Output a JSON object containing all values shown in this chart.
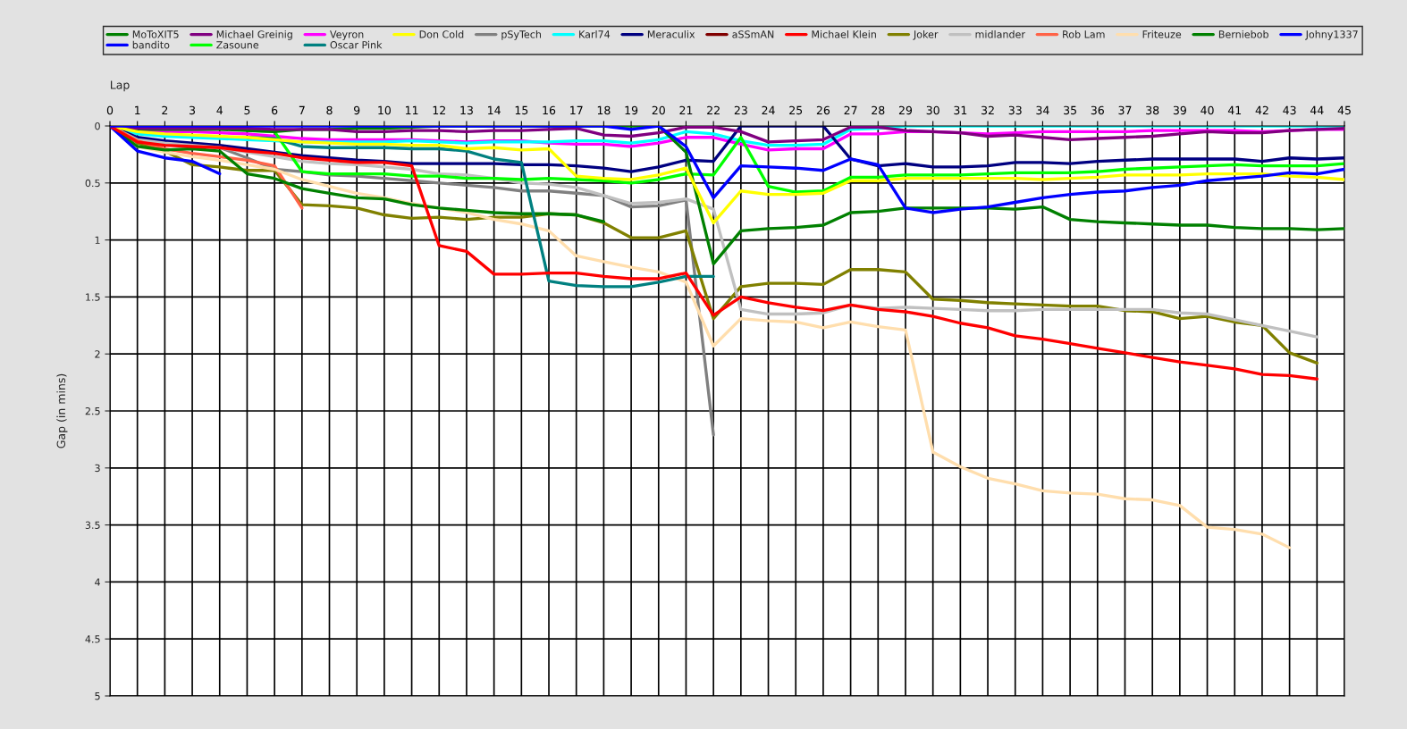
{
  "chart_data": {
    "type": "line",
    "xlabel": "Lap",
    "ylabel": "Gap (in mins)",
    "x": [
      0,
      1,
      2,
      3,
      4,
      5,
      6,
      7,
      8,
      9,
      10,
      11,
      12,
      13,
      14,
      15,
      16,
      17,
      18,
      19,
      20,
      21,
      22,
      23,
      24,
      25,
      26,
      27,
      28,
      29,
      30,
      31,
      32,
      33,
      34,
      35,
      36,
      37,
      38,
      39,
      40,
      41,
      42,
      43,
      44,
      45
    ],
    "xlim": [
      0,
      45
    ],
    "xticks": [
      0,
      1,
      2,
      3,
      4,
      5,
      6,
      7,
      8,
      9,
      10,
      11,
      12,
      13,
      14,
      15,
      16,
      17,
      18,
      19,
      20,
      21,
      22,
      23,
      24,
      25,
      26,
      27,
      28,
      29,
      30,
      31,
      32,
      33,
      34,
      35,
      36,
      37,
      38,
      39,
      40,
      41,
      42,
      43,
      44,
      45
    ],
    "ylim": [
      5,
      0
    ],
    "yticks": [
      0,
      0.5,
      1,
      1.5,
      2,
      2.5,
      3,
      3.5,
      4,
      4.5,
      5
    ],
    "grid": true,
    "legend": "top",
    "marker": "none",
    "line_style": "solid",
    "series": [
      {
        "name": "MoToXIT5",
        "color": "#008000",
        "values": [
          0,
          0.03,
          0.03,
          0.03,
          0.03,
          0.04,
          0.05,
          0.03,
          0.03,
          0.02,
          0.02,
          0.01,
          0,
          0,
          0,
          0,
          0,
          0,
          0,
          0,
          0,
          0.23,
          1.21,
          0.92,
          0.9,
          0.89,
          0.87,
          0.76,
          0.75,
          0.72,
          0.72,
          0.72,
          0.72,
          0.73,
          0.71,
          0.82,
          0.84,
          0.85,
          0.86,
          0.87,
          0.87,
          0.89,
          0.9,
          0.9,
          0.91,
          0.9
        ]
      },
      {
        "name": "Michael Greinig",
        "color": "#800080",
        "values": [
          0,
          0.02,
          0.02,
          0.02,
          0.02,
          0.02,
          0.03,
          0.03,
          0.03,
          0.05,
          0.05,
          0.04,
          0.04,
          0.05,
          0.04,
          0.04,
          0.03,
          0.02,
          0.08,
          0.09,
          0.06,
          0.01,
          0.01,
          0.05,
          0.14,
          0.13,
          0.12,
          0.01,
          0.01,
          0.04,
          0.05,
          0.06,
          0.09,
          0.08,
          0.1,
          0.12,
          0.11,
          0.1,
          0.09,
          0.07,
          0.05,
          0.06,
          0.06,
          0.04,
          0.03,
          0.02
        ]
      },
      {
        "name": "Veyron",
        "color": "#ff00ff",
        "values": [
          0,
          0.04,
          0.05,
          0.05,
          0.06,
          0.07,
          0.09,
          0.11,
          0.12,
          0.12,
          0.12,
          0.12,
          0.13,
          0.14,
          0.13,
          0.13,
          0.15,
          0.16,
          0.16,
          0.18,
          0.15,
          0.1,
          0.1,
          0.16,
          0.21,
          0.2,
          0.2,
          0.07,
          0.07,
          0.05,
          0.05,
          0.06,
          0.07,
          0.06,
          0.05,
          0.05,
          0.05,
          0.05,
          0.04,
          0.04,
          0.04,
          0.04,
          0.05,
          0.04,
          0.03,
          0.03
        ]
      },
      {
        "name": "Don Cold",
        "color": "#ffff00",
        "values": [
          0,
          0.05,
          0.07,
          0.08,
          0.09,
          0.1,
          0.12,
          0.14,
          0.15,
          0.16,
          0.16,
          0.17,
          0.17,
          0.2,
          0.19,
          0.21,
          0.2,
          0.44,
          0.46,
          0.47,
          0.43,
          0.37,
          0.85,
          0.57,
          0.6,
          0.6,
          0.59,
          0.48,
          0.48,
          0.46,
          0.46,
          0.46,
          0.46,
          0.46,
          0.47,
          0.46,
          0.45,
          0.43,
          0.43,
          0.43,
          0.42,
          0.42,
          0.42,
          0.44,
          0.45,
          0.47
        ]
      },
      {
        "name": "pSyTech",
        "color": "#808080",
        "values": [
          0,
          0.13,
          0.16,
          0.17,
          0.19,
          0.28,
          0.38,
          0.4,
          0.43,
          0.44,
          0.46,
          0.48,
          0.5,
          0.52,
          0.54,
          0.57,
          0.57,
          0.59,
          0.61,
          0.71,
          0.7,
          0.65,
          2.71,
          null,
          null,
          null,
          null,
          null,
          null,
          null,
          null,
          null,
          null,
          null,
          null,
          null,
          null,
          null,
          null,
          null,
          null,
          null,
          null,
          null,
          null,
          null
        ]
      },
      {
        "name": "Karl74",
        "color": "#00ffff",
        "values": [
          0,
          0.07,
          0.09,
          0.1,
          0.11,
          0.12,
          0.13,
          0.14,
          0.14,
          0.14,
          0.14,
          0.13,
          0.14,
          0.15,
          0.14,
          0.14,
          0.14,
          0.13,
          0.13,
          0.15,
          0.12,
          0.05,
          0.07,
          0.13,
          0.17,
          0.17,
          0.16,
          0.03,
          0.02,
          0,
          0,
          0,
          0,
          0,
          0,
          0,
          0,
          0,
          0,
          0,
          0,
          0,
          0,
          0,
          0,
          0
        ]
      },
      {
        "name": "Meraculix",
        "color": "#000080",
        "values": [
          0,
          0.1,
          0.13,
          0.15,
          0.17,
          0.2,
          0.23,
          0.26,
          0.28,
          0.3,
          0.31,
          0.33,
          0.33,
          0.33,
          0.33,
          0.34,
          0.34,
          0.35,
          0.37,
          0.4,
          0.36,
          0.3,
          0.31,
          0,
          0,
          0,
          0,
          0.29,
          0.35,
          0.33,
          0.36,
          0.36,
          0.35,
          0.32,
          0.32,
          0.33,
          0.31,
          0.3,
          0.29,
          0.29,
          0.29,
          0.29,
          0.31,
          0.28,
          0.29,
          0.28
        ]
      },
      {
        "name": "aSSmAN",
        "color": "#800000",
        "values": [
          null,
          null,
          null,
          null,
          null,
          null,
          null,
          null,
          null,
          null,
          null,
          null,
          null,
          null,
          null,
          null,
          null,
          null,
          null,
          null,
          null,
          null,
          null,
          null,
          null,
          null,
          null,
          null,
          null,
          null,
          null,
          null,
          null,
          null,
          null,
          null,
          null,
          null,
          null,
          null,
          null,
          null,
          null,
          null,
          null,
          null
        ]
      },
      {
        "name": "Michael Klein",
        "color": "#ff0000",
        "values": [
          0,
          0.14,
          0.17,
          0.18,
          0.19,
          0.22,
          0.24,
          0.28,
          0.3,
          0.32,
          0.32,
          0.35,
          1.05,
          1.1,
          1.3,
          1.3,
          1.29,
          1.29,
          1.32,
          1.34,
          1.34,
          1.29,
          1.66,
          1.5,
          1.55,
          1.59,
          1.62,
          1.57,
          1.61,
          1.63,
          1.67,
          1.73,
          1.77,
          1.84,
          1.87,
          1.91,
          1.95,
          1.99,
          2.03,
          2.07,
          2.1,
          2.13,
          2.18,
          2.19,
          2.22,
          null
        ]
      },
      {
        "name": "Joker",
        "color": "#808000",
        "values": [
          0,
          0.15,
          0.22,
          0.34,
          0.36,
          0.39,
          0.39,
          0.69,
          0.7,
          0.72,
          0.78,
          0.81,
          0.8,
          0.82,
          0.8,
          0.8,
          0.77,
          0.78,
          0.85,
          0.98,
          0.98,
          0.92,
          1.69,
          1.41,
          1.38,
          1.38,
          1.39,
          1.26,
          1.26,
          1.28,
          1.52,
          1.53,
          1.55,
          1.56,
          1.57,
          1.58,
          1.58,
          1.62,
          1.63,
          1.69,
          1.67,
          1.72,
          1.75,
          1.99,
          2.08,
          null
        ]
      },
      {
        "name": "midlander",
        "color": "#c0c0c0",
        "values": [
          0,
          0.12,
          0.15,
          0.17,
          0.19,
          0.23,
          0.27,
          0.31,
          0.33,
          0.34,
          0.36,
          0.38,
          0.42,
          0.43,
          0.46,
          0.5,
          0.51,
          0.54,
          0.61,
          0.68,
          0.67,
          0.64,
          0.73,
          1.61,
          1.65,
          1.65,
          1.64,
          1.57,
          1.6,
          1.59,
          1.6,
          1.61,
          1.62,
          1.62,
          1.61,
          1.61,
          1.61,
          1.61,
          1.61,
          1.64,
          1.65,
          1.7,
          1.75,
          1.8,
          1.85,
          null
        ]
      },
      {
        "name": "Rob Lam",
        "color": "#ff6347",
        "values": [
          0,
          0.13,
          0.2,
          0.24,
          0.27,
          0.3,
          0.35,
          0.72,
          null,
          null,
          null,
          null,
          null,
          null,
          null,
          null,
          null,
          null,
          null,
          null,
          null,
          null,
          null,
          null,
          null,
          null,
          null,
          null,
          null,
          null,
          null,
          null,
          null,
          null,
          null,
          null,
          null,
          null,
          null,
          null,
          null,
          null,
          null,
          null,
          null,
          null
        ]
      },
      {
        "name": "Friteuze",
        "color": "#ffdead",
        "values": [
          0,
          0.18,
          0.23,
          0.27,
          0.3,
          0.34,
          0.38,
          0.47,
          0.53,
          0.59,
          0.63,
          0.68,
          0.72,
          0.76,
          0.82,
          0.86,
          0.92,
          1.14,
          1.19,
          1.24,
          1.28,
          1.37,
          1.93,
          1.69,
          1.71,
          1.72,
          1.77,
          1.72,
          1.76,
          1.79,
          2.86,
          2.99,
          3.09,
          3.14,
          3.2,
          3.22,
          3.23,
          3.27,
          3.28,
          3.33,
          3.52,
          3.54,
          3.58,
          3.7,
          null,
          null
        ]
      },
      {
        "name": "Berniebob",
        "color": "#008000",
        "values": [
          0,
          0.18,
          0.21,
          0.2,
          0.22,
          0.42,
          0.46,
          0.55,
          0.59,
          0.63,
          0.64,
          0.69,
          0.72,
          0.74,
          0.76,
          0.77,
          0.77,
          0.78,
          0.84,
          null,
          null,
          null,
          null,
          null,
          null,
          null,
          null,
          null,
          null,
          null,
          null,
          null,
          null,
          null,
          null,
          null,
          null,
          null,
          null,
          null,
          null,
          null,
          null,
          null,
          null,
          null
        ]
      },
      {
        "name": "Johny1337",
        "color": "#0000ff",
        "values": [
          0,
          0,
          0,
          0,
          0,
          0,
          0,
          0,
          0,
          0,
          0,
          0,
          0,
          0,
          0,
          0,
          0,
          0,
          0,
          0.03,
          0,
          0.18,
          0.63,
          0.35,
          0.36,
          0.37,
          0.39,
          0.29,
          0.34,
          0.72,
          0.76,
          0.73,
          0.71,
          0.67,
          0.63,
          0.6,
          0.58,
          0.57,
          0.54,
          0.52,
          0.48,
          0.46,
          0.44,
          0.41,
          0.42,
          0.38
        ]
      },
      {
        "name": "bandito",
        "color": "#0000ff",
        "values": [
          0,
          0.22,
          0.28,
          0.31,
          0.42,
          null,
          null,
          null,
          null,
          null,
          null,
          null,
          null,
          null,
          null,
          null,
          null,
          null,
          null,
          null,
          null,
          null,
          null,
          null,
          null,
          null,
          null,
          null,
          null,
          null,
          null,
          null,
          null,
          null,
          null,
          null,
          null,
          null,
          null,
          null,
          null,
          null,
          null,
          null,
          null,
          null
        ]
      },
      {
        "name": "Zasoune",
        "color": "#00ff00",
        "values": [
          null,
          null,
          null,
          null,
          null,
          0.04,
          0.05,
          0.4,
          0.42,
          0.42,
          0.42,
          0.44,
          0.44,
          0.46,
          0.46,
          0.47,
          0.46,
          0.47,
          0.48,
          0.5,
          0.47,
          0.42,
          0.43,
          0.1,
          0.53,
          0.58,
          0.57,
          0.45,
          0.45,
          0.43,
          0.43,
          0.43,
          0.42,
          0.41,
          0.41,
          0.41,
          0.4,
          0.38,
          0.37,
          0.36,
          0.35,
          0.34,
          0.35,
          0.35,
          0.35,
          0.33
        ]
      },
      {
        "name": "Oscar Pink",
        "color": "#008080",
        "values": [
          null,
          null,
          null,
          null,
          null,
          0.1,
          0.11,
          0.18,
          0.19,
          0.19,
          0.19,
          0.2,
          0.2,
          0.22,
          0.29,
          0.32,
          1.36,
          1.4,
          1.41,
          1.41,
          1.37,
          1.32,
          1.32,
          null,
          null,
          null,
          null,
          null,
          null,
          null,
          null,
          null,
          null,
          null,
          null,
          null,
          null,
          null,
          null,
          null,
          null,
          null,
          null,
          null,
          null,
          null
        ]
      }
    ]
  }
}
